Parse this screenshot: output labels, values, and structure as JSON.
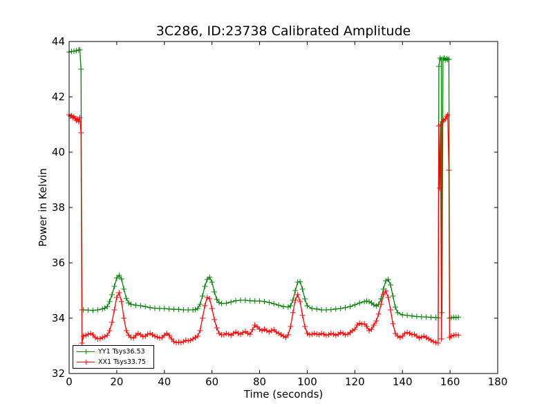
{
  "chart_data": {
    "type": "line",
    "title": "3C286, ID:23738 Calibrated Amplitude",
    "xlabel": "Time (seconds)",
    "ylabel": "Power in Kelvin",
    "xlim": [
      0,
      180
    ],
    "ylim": [
      32,
      44
    ],
    "xticks": [
      "0",
      "20",
      "40",
      "60",
      "80",
      "100",
      "120",
      "140",
      "160",
      "180"
    ],
    "yticks": [
      "32",
      "34",
      "36",
      "38",
      "40",
      "42",
      "44"
    ],
    "grid": false,
    "legend_position": "lower-left",
    "marker": "+",
    "series": [
      {
        "name": "YY1 Tsys36.53",
        "color": "#008000",
        "points": [
          [
            0,
            43.62
          ],
          [
            1,
            43.64
          ],
          [
            2,
            43.65
          ],
          [
            3,
            43.67
          ],
          [
            4,
            43.69
          ],
          [
            4.5,
            43.7
          ],
          [
            5,
            43.0
          ],
          [
            5.4,
            34.3
          ],
          [
            6,
            34.3
          ],
          [
            8,
            34.29
          ],
          [
            10,
            34.28
          ],
          [
            12,
            34.3
          ],
          [
            14,
            34.33
          ],
          [
            15,
            34.36
          ],
          [
            16,
            34.42
          ],
          [
            17,
            34.6
          ],
          [
            18,
            34.85
          ],
          [
            19,
            35.15
          ],
          [
            20,
            35.45
          ],
          [
            21,
            35.55
          ],
          [
            22,
            35.42
          ],
          [
            23,
            35.05
          ],
          [
            24,
            34.72
          ],
          [
            25,
            34.55
          ],
          [
            26,
            34.5
          ],
          [
            28,
            34.47
          ],
          [
            30,
            34.45
          ],
          [
            32,
            34.42
          ],
          [
            34,
            34.38
          ],
          [
            36,
            34.36
          ],
          [
            38,
            34.35
          ],
          [
            40,
            34.35
          ],
          [
            42,
            34.33
          ],
          [
            44,
            34.32
          ],
          [
            46,
            34.32
          ],
          [
            48,
            34.3
          ],
          [
            50,
            34.3
          ],
          [
            52,
            34.3
          ],
          [
            53,
            34.31
          ],
          [
            54,
            34.35
          ],
          [
            55,
            34.5
          ],
          [
            56,
            34.8
          ],
          [
            57,
            35.15
          ],
          [
            58,
            35.4
          ],
          [
            59,
            35.48
          ],
          [
            60,
            35.3
          ],
          [
            61,
            34.95
          ],
          [
            62,
            34.68
          ],
          [
            63,
            34.56
          ],
          [
            64,
            34.53
          ],
          [
            66,
            34.54
          ],
          [
            68,
            34.58
          ],
          [
            70,
            34.63
          ],
          [
            72,
            34.65
          ],
          [
            74,
            34.65
          ],
          [
            76,
            34.63
          ],
          [
            78,
            34.62
          ],
          [
            80,
            34.62
          ],
          [
            82,
            34.6
          ],
          [
            84,
            34.57
          ],
          [
            86,
            34.52
          ],
          [
            88,
            34.47
          ],
          [
            90,
            34.42
          ],
          [
            92,
            34.4
          ],
          [
            93,
            34.45
          ],
          [
            94,
            34.65
          ],
          [
            95,
            35.0
          ],
          [
            96,
            35.3
          ],
          [
            97,
            35.32
          ],
          [
            98,
            35.05
          ],
          [
            99,
            34.7
          ],
          [
            100,
            34.45
          ],
          [
            102,
            34.35
          ],
          [
            104,
            34.33
          ],
          [
            106,
            34.3
          ],
          [
            108,
            34.3
          ],
          [
            110,
            34.31
          ],
          [
            112,
            34.33
          ],
          [
            114,
            34.35
          ],
          [
            116,
            34.38
          ],
          [
            118,
            34.42
          ],
          [
            120,
            34.48
          ],
          [
            122,
            34.55
          ],
          [
            124,
            34.6
          ],
          [
            125,
            34.62
          ],
          [
            126,
            34.6
          ],
          [
            127,
            34.55
          ],
          [
            128,
            34.48
          ],
          [
            129,
            34.44
          ],
          [
            130,
            34.5
          ],
          [
            131,
            34.7
          ],
          [
            132,
            35.05
          ],
          [
            133,
            35.35
          ],
          [
            134,
            35.4
          ],
          [
            135,
            35.2
          ],
          [
            136,
            34.8
          ],
          [
            137,
            34.4
          ],
          [
            138,
            34.2
          ],
          [
            140,
            34.12
          ],
          [
            142,
            34.1
          ],
          [
            144,
            34.08
          ],
          [
            146,
            34.06
          ],
          [
            148,
            34.05
          ],
          [
            150,
            34.04
          ],
          [
            152,
            34.03
          ],
          [
            154,
            34.02
          ],
          [
            155,
            34.01
          ],
          [
            155.3,
            43.1
          ],
          [
            155.8,
            43.4
          ],
          [
            156.3,
            43.35
          ],
          [
            156.6,
            34.2
          ],
          [
            157,
            43.35
          ],
          [
            157.5,
            43.4
          ],
          [
            158,
            43.33
          ],
          [
            158.5,
            43.38
          ],
          [
            159,
            43.35
          ],
          [
            159.5,
            43.36
          ],
          [
            159.8,
            34.0
          ],
          [
            160.5,
            34.02
          ],
          [
            161.5,
            34.03
          ],
          [
            162.5,
            34.02
          ],
          [
            163.5,
            34.03
          ]
        ]
      },
      {
        "name": "XX1 Tsys33.75",
        "color": "#ff0000",
        "points": [
          [
            0,
            41.35
          ],
          [
            0.5,
            41.3
          ],
          [
            1,
            41.32
          ],
          [
            1.5,
            41.25
          ],
          [
            2,
            41.28
          ],
          [
            2.5,
            41.22
          ],
          [
            3,
            41.15
          ],
          [
            3.5,
            41.2
          ],
          [
            4,
            41.1
          ],
          [
            4.5,
            41.25
          ],
          [
            5,
            40.7
          ],
          [
            5.4,
            33.1
          ],
          [
            6,
            33.35
          ],
          [
            7,
            33.38
          ],
          [
            8,
            33.42
          ],
          [
            9,
            33.45
          ],
          [
            10,
            33.4
          ],
          [
            11,
            33.3
          ],
          [
            12,
            33.25
          ],
          [
            13,
            33.26
          ],
          [
            14,
            33.3
          ],
          [
            15,
            33.33
          ],
          [
            16,
            33.38
          ],
          [
            17,
            33.55
          ],
          [
            18,
            33.85
          ],
          [
            19,
            34.3
          ],
          [
            20,
            34.75
          ],
          [
            21,
            34.92
          ],
          [
            22,
            34.6
          ],
          [
            23,
            34.0
          ],
          [
            24,
            33.55
          ],
          [
            25,
            33.38
          ],
          [
            26,
            33.3
          ],
          [
            27,
            33.28
          ],
          [
            28,
            33.38
          ],
          [
            29,
            33.45
          ],
          [
            30,
            33.4
          ],
          [
            31,
            33.33
          ],
          [
            32,
            33.35
          ],
          [
            33,
            33.42
          ],
          [
            34,
            33.45
          ],
          [
            35,
            33.4
          ],
          [
            36,
            33.35
          ],
          [
            37,
            33.32
          ],
          [
            38,
            33.28
          ],
          [
            39,
            33.3
          ],
          [
            40,
            33.38
          ],
          [
            41,
            33.45
          ],
          [
            42,
            33.38
          ],
          [
            43,
            33.25
          ],
          [
            44,
            33.15
          ],
          [
            45,
            33.12
          ],
          [
            46,
            33.13
          ],
          [
            47,
            33.12
          ],
          [
            48,
            33.15
          ],
          [
            49,
            33.2
          ],
          [
            50,
            33.18
          ],
          [
            51,
            33.2
          ],
          [
            52,
            33.25
          ],
          [
            53,
            33.3
          ],
          [
            54,
            33.35
          ],
          [
            55,
            33.55
          ],
          [
            56,
            34.0
          ],
          [
            57,
            34.45
          ],
          [
            58,
            34.75
          ],
          [
            59,
            34.7
          ],
          [
            60,
            34.35
          ],
          [
            61,
            33.95
          ],
          [
            62,
            33.65
          ],
          [
            63,
            33.45
          ],
          [
            64,
            33.4
          ],
          [
            65,
            33.4
          ],
          [
            66,
            33.45
          ],
          [
            67,
            33.42
          ],
          [
            68,
            33.38
          ],
          [
            69,
            33.45
          ],
          [
            70,
            33.5
          ],
          [
            71,
            33.45
          ],
          [
            72,
            33.42
          ],
          [
            73,
            33.48
          ],
          [
            74,
            33.52
          ],
          [
            75,
            33.45
          ],
          [
            76,
            33.42
          ],
          [
            77,
            33.58
          ],
          [
            78,
            33.75
          ],
          [
            79,
            33.68
          ],
          [
            80,
            33.6
          ],
          [
            81,
            33.55
          ],
          [
            82,
            33.6
          ],
          [
            83,
            33.55
          ],
          [
            84,
            33.5
          ],
          [
            85,
            33.55
          ],
          [
            86,
            33.58
          ],
          [
            87,
            33.5
          ],
          [
            88,
            33.45
          ],
          [
            89,
            33.4
          ],
          [
            90,
            33.35
          ],
          [
            91,
            33.3
          ],
          [
            92,
            33.4
          ],
          [
            93,
            33.7
          ],
          [
            94,
            34.2
          ],
          [
            95,
            34.65
          ],
          [
            96,
            34.85
          ],
          [
            97,
            34.6
          ],
          [
            98,
            34.1
          ],
          [
            99,
            33.7
          ],
          [
            100,
            33.45
          ],
          [
            101,
            33.4
          ],
          [
            102,
            33.42
          ],
          [
            103,
            33.45
          ],
          [
            104,
            33.42
          ],
          [
            105,
            33.4
          ],
          [
            106,
            33.45
          ],
          [
            107,
            33.42
          ],
          [
            108,
            33.38
          ],
          [
            109,
            33.4
          ],
          [
            110,
            33.45
          ],
          [
            111,
            33.42
          ],
          [
            112,
            33.38
          ],
          [
            113,
            33.42
          ],
          [
            114,
            33.48
          ],
          [
            115,
            33.45
          ],
          [
            116,
            33.4
          ],
          [
            117,
            33.42
          ],
          [
            118,
            33.48
          ],
          [
            119,
            33.55
          ],
          [
            120,
            33.6
          ],
          [
            121,
            33.75
          ],
          [
            122,
            33.82
          ],
          [
            123,
            33.78
          ],
          [
            124,
            33.8
          ],
          [
            125,
            33.7
          ],
          [
            126,
            33.55
          ],
          [
            127,
            33.6
          ],
          [
            128,
            33.75
          ],
          [
            129,
            33.9
          ],
          [
            130,
            34.15
          ],
          [
            131,
            34.5
          ],
          [
            132,
            34.85
          ],
          [
            133,
            34.98
          ],
          [
            134,
            34.75
          ],
          [
            135,
            34.3
          ],
          [
            136,
            33.8
          ],
          [
            137,
            33.45
          ],
          [
            138,
            33.35
          ],
          [
            139,
            33.3
          ],
          [
            140,
            33.35
          ],
          [
            141,
            33.45
          ],
          [
            142,
            33.48
          ],
          [
            143,
            33.45
          ],
          [
            144,
            33.4
          ],
          [
            145,
            33.42
          ],
          [
            146,
            33.35
          ],
          [
            147,
            33.28
          ],
          [
            148,
            33.32
          ],
          [
            149,
            33.35
          ],
          [
            150,
            33.3
          ],
          [
            151,
            33.25
          ],
          [
            152,
            33.2
          ],
          [
            153,
            33.15
          ],
          [
            154,
            33.12
          ],
          [
            155,
            33.1
          ],
          [
            155.3,
            40.95
          ],
          [
            155.6,
            38.7
          ],
          [
            156,
            41.0
          ],
          [
            156.4,
            33.25
          ],
          [
            156.8,
            41.1
          ],
          [
            157.3,
            41.15
          ],
          [
            158,
            41.2
          ],
          [
            158.6,
            41.3
          ],
          [
            159,
            41.35
          ],
          [
            159.5,
            39.35
          ],
          [
            159.8,
            33.3
          ],
          [
            160.5,
            33.35
          ],
          [
            161.5,
            33.38
          ],
          [
            162.5,
            33.4
          ],
          [
            163.5,
            33.38
          ]
        ]
      }
    ]
  }
}
